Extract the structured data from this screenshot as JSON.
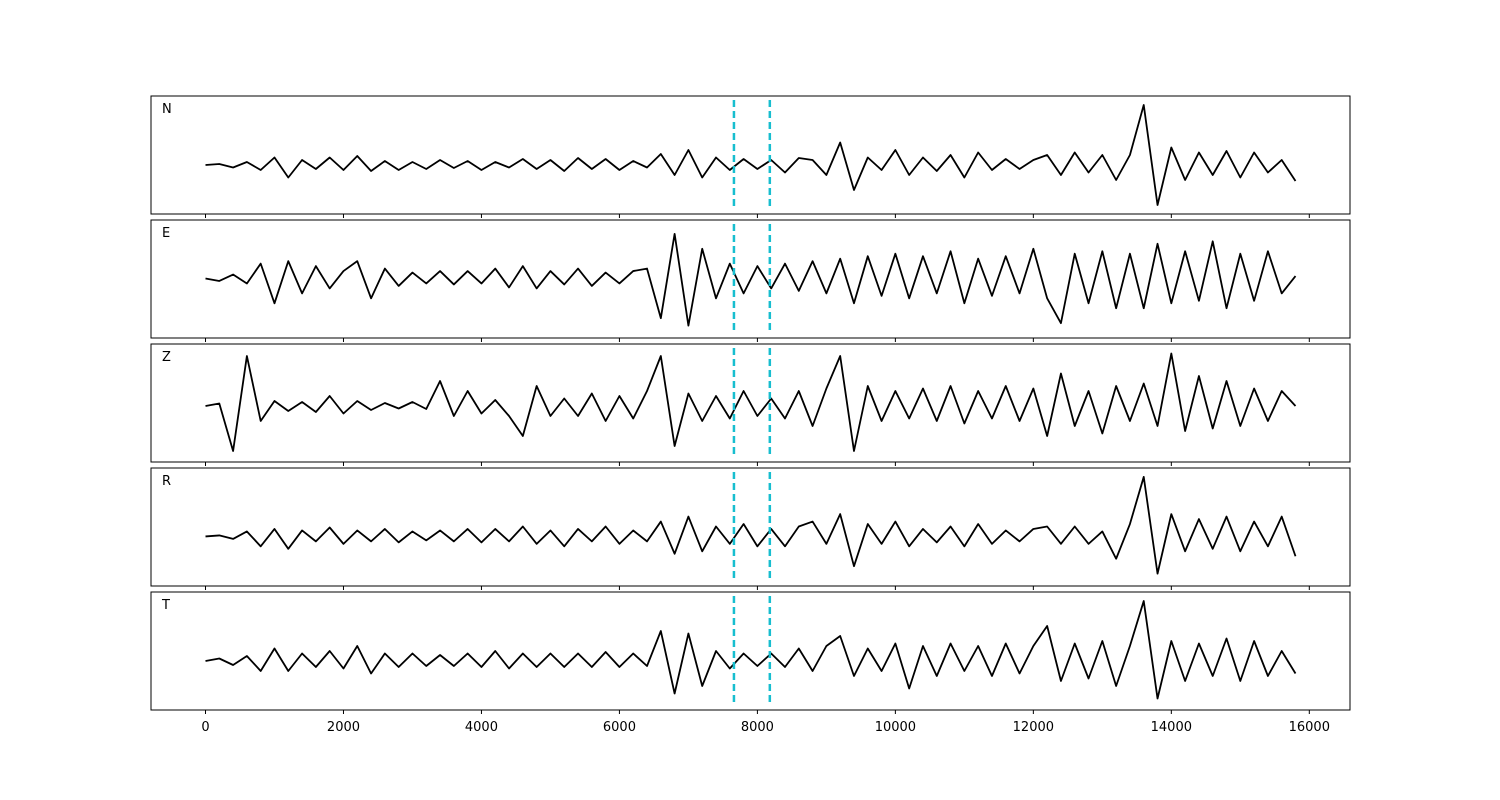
{
  "chart_data": {
    "type": "line",
    "layout": "stacked",
    "x": [
      0,
      200,
      400,
      600,
      800,
      1000,
      1200,
      1400,
      1600,
      1800,
      2000,
      2200,
      2400,
      2600,
      2800,
      3000,
      3200,
      3400,
      3600,
      3800,
      4000,
      4200,
      4400,
      4600,
      4800,
      5000,
      5200,
      5400,
      5600,
      5800,
      6000,
      6200,
      6400,
      6600,
      6800,
      7000,
      7200,
      7400,
      7600,
      7800,
      8000,
      8200,
      8400,
      8600,
      8800,
      9000,
      9200,
      9400,
      9600,
      9800,
      10000,
      10200,
      10400,
      10600,
      10800,
      11000,
      11200,
      11400,
      11600,
      11800,
      12000,
      12200,
      12400,
      12600,
      12800,
      13000,
      13200,
      13400,
      13600,
      13800,
      14000,
      14200,
      14400,
      14600,
      14800,
      15000,
      15200,
      15400,
      15600,
      15800
    ],
    "xlim": [
      -790,
      16590
    ],
    "xticks": [
      0,
      2000,
      4000,
      6000,
      8000,
      10000,
      12000,
      14000,
      16000
    ],
    "vlines": [
      7660,
      8180
    ],
    "vline_color": "#17becf",
    "vline_style": "dashed",
    "series": [
      {
        "name": "N",
        "color": "#000000",
        "ylim": [
          -0.98,
          1.38
        ],
        "values": [
          0,
          0.02,
          -0.05,
          0.06,
          -0.1,
          0.15,
          -0.25,
          0.1,
          -0.08,
          0.15,
          -0.1,
          0.18,
          -0.12,
          0.08,
          -0.1,
          0.06,
          -0.08,
          0.1,
          -0.06,
          0.08,
          -0.1,
          0.06,
          -0.05,
          0.12,
          -0.08,
          0.1,
          -0.12,
          0.14,
          -0.08,
          0.12,
          -0.1,
          0.08,
          -0.05,
          0.22,
          -0.2,
          0.3,
          -0.25,
          0.15,
          -0.1,
          0.12,
          -0.08,
          0.1,
          -0.15,
          0.14,
          0.1,
          -0.2,
          0.45,
          -0.5,
          0.15,
          -0.1,
          0.3,
          -0.2,
          0.15,
          -0.12,
          0.2,
          -0.25,
          0.25,
          -0.1,
          0.12,
          -0.08,
          0.1,
          0.2,
          -0.2,
          0.25,
          -0.15,
          0.2,
          -0.3,
          0.2,
          1.2,
          -0.8,
          0.35,
          -0.3,
          0.25,
          -0.2,
          0.28,
          -0.25,
          0.25,
          -0.15,
          0.1,
          -0.32
        ]
      },
      {
        "name": "E",
        "color": "#000000",
        "ylim": [
          -1.2,
          1.18
        ],
        "values": [
          0,
          -0.05,
          0.08,
          -0.1,
          0.3,
          -0.5,
          0.35,
          -0.3,
          0.25,
          -0.2,
          0.15,
          0.35,
          -0.4,
          0.2,
          -0.15,
          0.12,
          -0.1,
          0.15,
          -0.12,
          0.15,
          -0.1,
          0.2,
          -0.18,
          0.25,
          -0.2,
          0.15,
          -0.12,
          0.2,
          -0.15,
          0.12,
          -0.1,
          0.15,
          0.2,
          -0.8,
          0.9,
          -0.95,
          0.6,
          -0.4,
          0.3,
          -0.3,
          0.25,
          -0.2,
          0.3,
          -0.25,
          0.35,
          -0.3,
          0.4,
          -0.5,
          0.45,
          -0.35,
          0.5,
          -0.4,
          0.45,
          -0.3,
          0.55,
          -0.5,
          0.4,
          -0.35,
          0.45,
          -0.3,
          0.6,
          -0.4,
          -0.9,
          0.5,
          -0.5,
          0.55,
          -0.6,
          0.5,
          -0.6,
          0.7,
          -0.5,
          0.55,
          -0.45,
          0.75,
          -0.6,
          0.5,
          -0.45,
          0.55,
          -0.3,
          0.05
        ]
      },
      {
        "name": "Z",
        "color": "#000000",
        "ylim": [
          -1.12,
          1.24
        ],
        "values": [
          0,
          0.05,
          -0.9,
          1.0,
          -0.3,
          0.1,
          -0.1,
          0.08,
          -0.12,
          0.2,
          -0.15,
          0.1,
          -0.08,
          0.06,
          -0.05,
          0.08,
          -0.06,
          0.5,
          -0.2,
          0.3,
          -0.15,
          0.12,
          -0.2,
          -0.6,
          0.4,
          -0.2,
          0.15,
          -0.2,
          0.25,
          -0.3,
          0.2,
          -0.25,
          0.3,
          1.0,
          -0.8,
          0.25,
          -0.3,
          0.2,
          -0.25,
          0.3,
          -0.2,
          0.15,
          -0.25,
          0.3,
          -0.4,
          0.35,
          1.0,
          -0.9,
          0.4,
          -0.3,
          0.3,
          -0.25,
          0.35,
          -0.3,
          0.4,
          -0.35,
          0.3,
          -0.25,
          0.4,
          -0.3,
          0.35,
          -0.6,
          0.65,
          -0.4,
          0.3,
          -0.55,
          0.4,
          -0.3,
          0.45,
          -0.4,
          1.05,
          -0.5,
          0.6,
          -0.45,
          0.5,
          -0.4,
          0.35,
          -0.3,
          0.3,
          0
        ]
      },
      {
        "name": "R",
        "color": "#000000",
        "ylim": [
          -1.0,
          1.38
        ],
        "values": [
          0,
          0.02,
          -0.05,
          0.1,
          -0.2,
          0.15,
          -0.25,
          0.12,
          -0.1,
          0.18,
          -0.15,
          0.12,
          -0.1,
          0.15,
          -0.12,
          0.1,
          -0.08,
          0.12,
          -0.1,
          0.15,
          -0.12,
          0.15,
          -0.1,
          0.2,
          -0.15,
          0.12,
          -0.2,
          0.15,
          -0.1,
          0.2,
          -0.15,
          0.12,
          -0.1,
          0.3,
          -0.35,
          0.4,
          -0.3,
          0.2,
          -0.15,
          0.25,
          -0.2,
          0.15,
          -0.2,
          0.2,
          0.3,
          -0.15,
          0.45,
          -0.6,
          0.25,
          -0.15,
          0.3,
          -0.2,
          0.15,
          -0.12,
          0.2,
          -0.2,
          0.25,
          -0.15,
          0.12,
          -0.1,
          0.15,
          0.2,
          -0.15,
          0.2,
          -0.15,
          0.1,
          -0.45,
          0.25,
          1.2,
          -0.75,
          0.45,
          -0.3,
          0.35,
          -0.25,
          0.4,
          -0.3,
          0.3,
          -0.2,
          0.4,
          -0.4
        ]
      },
      {
        "name": "T",
        "color": "#000000",
        "ylim": [
          -0.98,
          1.38
        ],
        "values": [
          0,
          0.05,
          -0.08,
          0.1,
          -0.2,
          0.25,
          -0.2,
          0.15,
          -0.12,
          0.2,
          -0.15,
          0.3,
          -0.25,
          0.15,
          -0.12,
          0.15,
          -0.1,
          0.12,
          -0.1,
          0.15,
          -0.12,
          0.2,
          -0.15,
          0.15,
          -0.12,
          0.15,
          -0.12,
          0.15,
          -0.12,
          0.18,
          -0.12,
          0.15,
          -0.1,
          0.6,
          -0.65,
          0.55,
          -0.5,
          0.2,
          -0.15,
          0.15,
          -0.1,
          0.15,
          -0.12,
          0.25,
          -0.2,
          0.3,
          0.5,
          -0.3,
          0.25,
          -0.2,
          0.35,
          -0.55,
          0.3,
          -0.3,
          0.35,
          -0.2,
          0.3,
          -0.3,
          0.35,
          -0.25,
          0.3,
          0.7,
          -0.4,
          0.35,
          -0.35,
          0.4,
          -0.5,
          0.3,
          1.2,
          -0.75,
          0.4,
          -0.4,
          0.35,
          -0.3,
          0.45,
          -0.4,
          0.4,
          -0.3,
          0.2,
          -0.25
        ]
      }
    ]
  }
}
